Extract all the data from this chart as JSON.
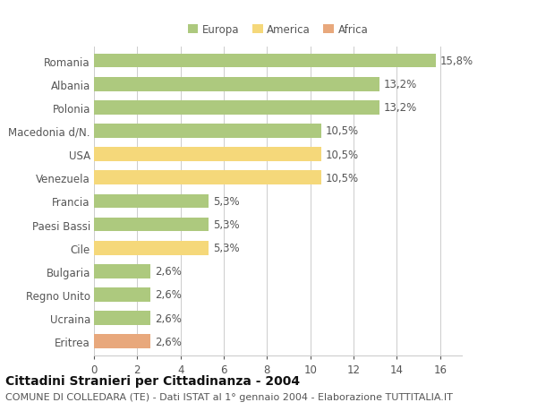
{
  "countries": [
    "Romania",
    "Albania",
    "Polonia",
    "Macedonia d/N.",
    "USA",
    "Venezuela",
    "Francia",
    "Paesi Bassi",
    "Cile",
    "Bulgaria",
    "Regno Unito",
    "Ucraina",
    "Eritrea"
  ],
  "values": [
    15.8,
    13.2,
    13.2,
    10.5,
    10.5,
    10.5,
    5.3,
    5.3,
    5.3,
    2.6,
    2.6,
    2.6,
    2.6
  ],
  "labels": [
    "15,8%",
    "13,2%",
    "13,2%",
    "10,5%",
    "10,5%",
    "10,5%",
    "5,3%",
    "5,3%",
    "5,3%",
    "2,6%",
    "2,6%",
    "2,6%",
    "2,6%"
  ],
  "continents": [
    "Europa",
    "Europa",
    "Europa",
    "Europa",
    "America",
    "America",
    "Europa",
    "Europa",
    "America",
    "Europa",
    "Europa",
    "Europa",
    "Africa"
  ],
  "colors": {
    "Europa": "#adc97e",
    "America": "#f5d87a",
    "Africa": "#e8a87c"
  },
  "legend_labels": [
    "Europa",
    "America",
    "Africa"
  ],
  "legend_colors": [
    "#adc97e",
    "#f5d87a",
    "#e8a87c"
  ],
  "xlim": [
    0,
    17
  ],
  "xticks": [
    0,
    2,
    4,
    6,
    8,
    10,
    12,
    14,
    16
  ],
  "title": "Cittadini Stranieri per Cittadinanza - 2004",
  "subtitle": "COMUNE DI COLLEDARA (TE) - Dati ISTAT al 1° gennaio 2004 - Elaborazione TUTTITALIA.IT",
  "bg_color": "#ffffff",
  "bar_height": 0.6,
  "grid_color": "#cccccc",
  "label_fontsize": 8.5,
  "ytick_fontsize": 8.5,
  "xtick_fontsize": 8.5,
  "title_fontsize": 10,
  "subtitle_fontsize": 8,
  "label_color": "#555555",
  "title_color": "#111111",
  "subtitle_color": "#555555"
}
